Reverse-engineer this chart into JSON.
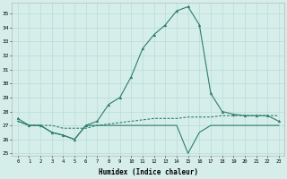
{
  "xlabel": "Humidex (Indice chaleur)",
  "x": [
    0,
    1,
    2,
    3,
    4,
    5,
    6,
    7,
    8,
    9,
    10,
    11,
    12,
    13,
    14,
    15,
    16,
    17,
    18,
    19,
    20,
    21,
    22,
    23
  ],
  "humidex": [
    27.5,
    27.0,
    27.0,
    26.5,
    26.3,
    26.0,
    27.0,
    27.3,
    28.5,
    29.0,
    30.5,
    32.5,
    33.5,
    34.2,
    35.2,
    35.5,
    34.2,
    29.3,
    28.0,
    27.8,
    27.7,
    27.7,
    27.7,
    27.3
  ],
  "line_flat": [
    27.3,
    27.0,
    27.0,
    26.5,
    26.3,
    26.0,
    27.0,
    27.0,
    27.0,
    27.0,
    27.0,
    27.0,
    27.0,
    27.0,
    27.0,
    25.0,
    26.5,
    27.0,
    27.0,
    27.0,
    27.0,
    27.0,
    27.0,
    27.0
  ],
  "line_rising": [
    27.3,
    27.0,
    27.0,
    27.0,
    26.8,
    26.8,
    26.8,
    27.0,
    27.1,
    27.2,
    27.3,
    27.4,
    27.5,
    27.5,
    27.5,
    27.6,
    27.6,
    27.6,
    27.7,
    27.7,
    27.7,
    27.7,
    27.7,
    27.7
  ],
  "yticks": [
    25,
    26,
    27,
    28,
    29,
    30,
    31,
    32,
    33,
    34,
    35
  ],
  "line_color": "#2d7d6e",
  "bg_color": "#d6eeea",
  "grid_color": "#b2d8d2"
}
